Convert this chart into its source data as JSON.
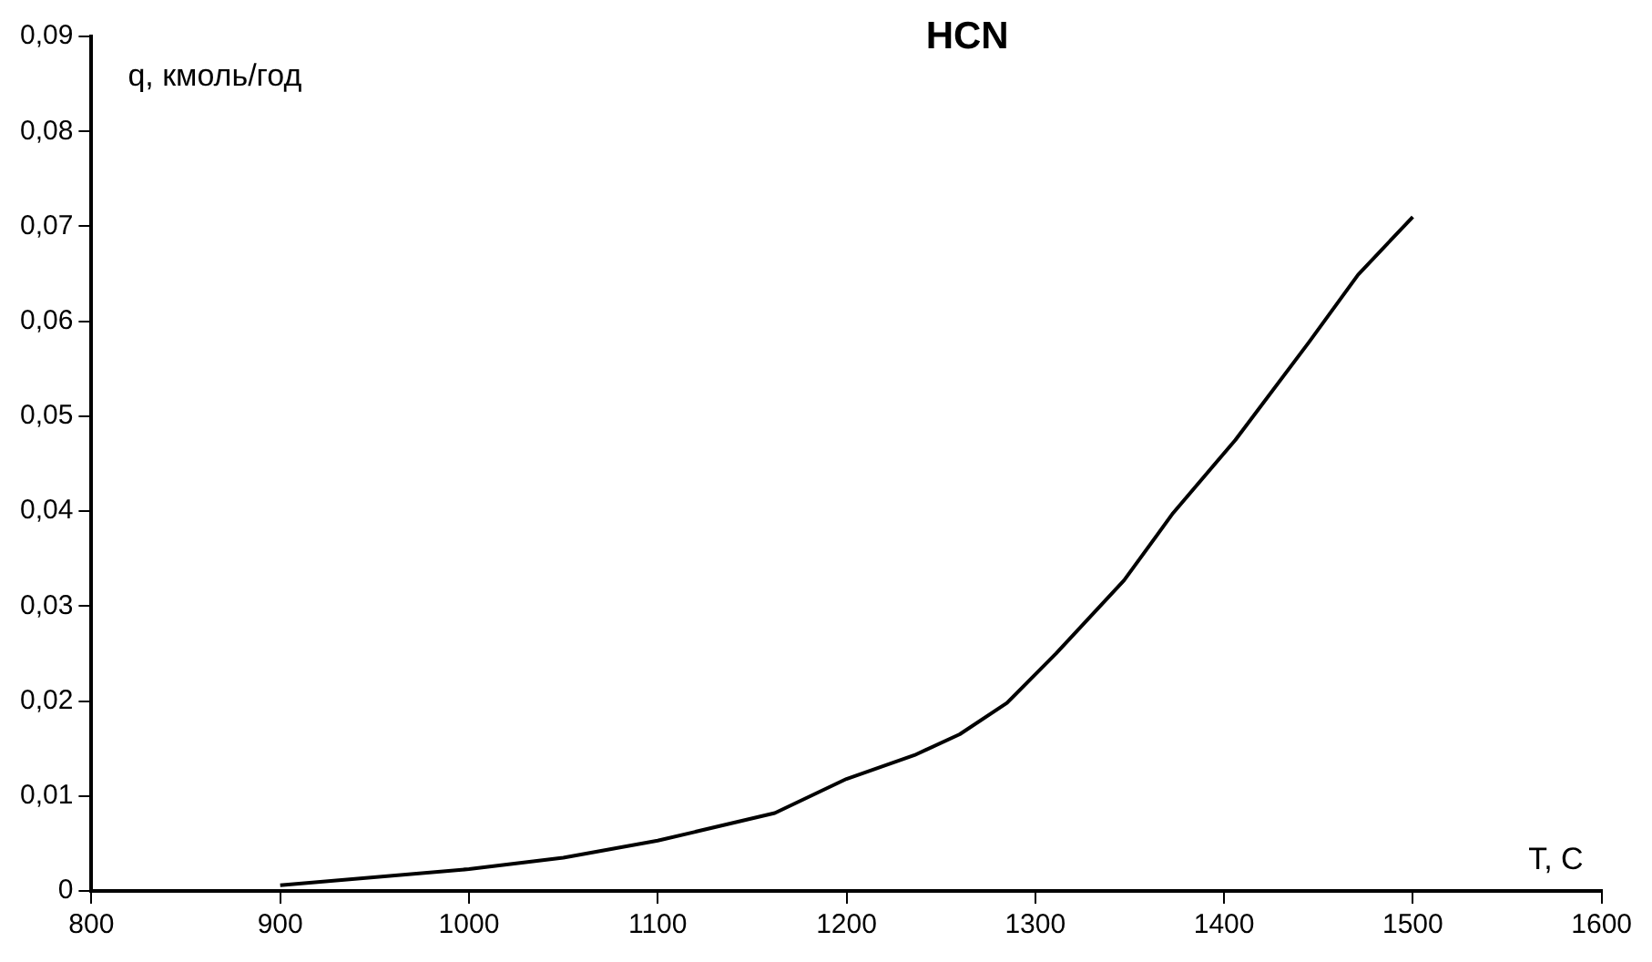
{
  "chart_data": {
    "type": "line",
    "title": "HCN",
    "xlabel": "T, C",
    "ylabel": "q, кмоль/год",
    "x": [
      900,
      1000,
      1050,
      1100,
      1162,
      1200,
      1236,
      1260,
      1285,
      1311,
      1347,
      1373,
      1406,
      1445,
      1471,
      1500
    ],
    "series": [
      {
        "color": "#000000",
        "values": [
          0.0006,
          0.0023,
          0.0035,
          0.0053,
          0.0082,
          0.0118,
          0.0143,
          0.0165,
          0.0198,
          0.025,
          0.0327,
          0.0398,
          0.0475,
          0.0578,
          0.0649,
          0.071
        ]
      }
    ],
    "xlim": [
      800,
      1600
    ],
    "xticks": [
      800,
      900,
      1000,
      1100,
      1200,
      1300,
      1400,
      1500,
      1600
    ],
    "ylim": [
      0,
      0.09
    ],
    "yticks": [
      0,
      {
        "value": 0.01,
        "label": "0,01"
      },
      {
        "value": 0.02,
        "label": "0,02"
      },
      {
        "value": 0.03,
        "label": "0,03"
      },
      {
        "value": 0.04,
        "label": "0,04"
      },
      {
        "value": 0.05,
        "label": "0,05"
      },
      {
        "value": 0.06,
        "label": "0,06"
      },
      {
        "value": 0.07,
        "label": "0,07"
      },
      {
        "value": 0.08,
        "label": "0,08"
      },
      {
        "value": 0.09,
        "label": "0,09"
      }
    ],
    "grid": false,
    "legend": false,
    "marker": "none",
    "line_style": "solid"
  }
}
